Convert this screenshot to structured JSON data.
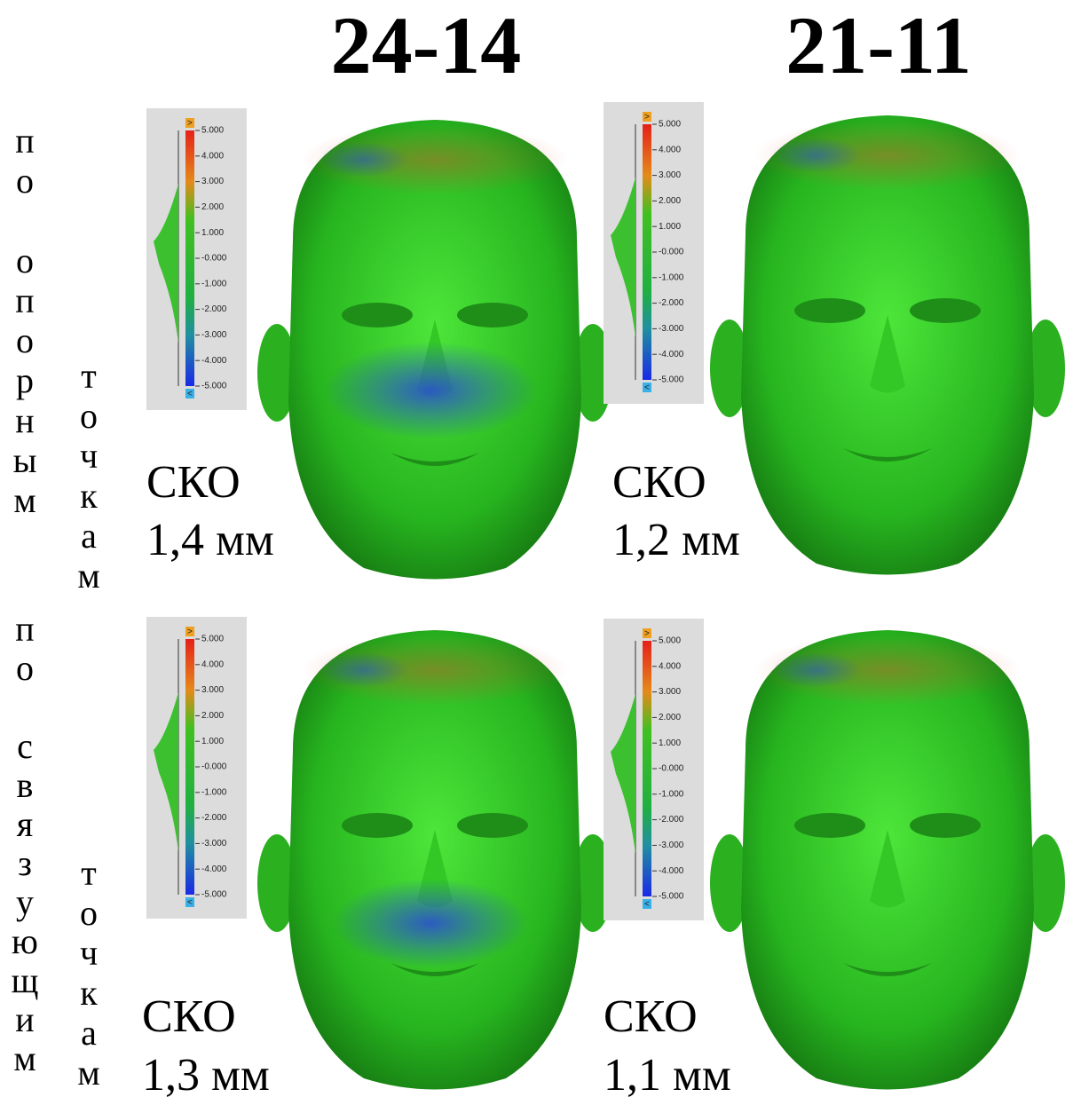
{
  "columns": [
    {
      "title": "24-14"
    },
    {
      "title": "21-11"
    }
  ],
  "rows": [
    {
      "label": [
        "по опорным",
        "точкам"
      ],
      "panels": [
        {
          "metric": "СКО",
          "value": "1,4 мм"
        },
        {
          "metric": "СКО",
          "value": "1,2 мм"
        }
      ]
    },
    {
      "label": [
        "по связующим",
        "точкам"
      ],
      "panels": [
        {
          "metric": "СКО",
          "value": "1,3 мм"
        },
        {
          "metric": "СКО",
          "value": "1,1 мм"
        }
      ]
    }
  ],
  "color_scale": {
    "over_label": ">",
    "under_label": "<",
    "ticks": [
      {
        "value": 5,
        "label": "5.000"
      },
      {
        "value": 4,
        "label": "4.000"
      },
      {
        "value": 3,
        "label": "3.000"
      },
      {
        "value": 2,
        "label": "2.000"
      },
      {
        "value": 1,
        "label": "1.000"
      },
      {
        "value": 0,
        "label": "-0.000"
      },
      {
        "value": -1,
        "label": "-1.000"
      },
      {
        "value": -2,
        "label": "-2.000"
      },
      {
        "value": -3,
        "label": "-3.000"
      },
      {
        "value": -4,
        "label": "-4.000"
      },
      {
        "value": -5,
        "label": "-5.000"
      }
    ]
  }
}
